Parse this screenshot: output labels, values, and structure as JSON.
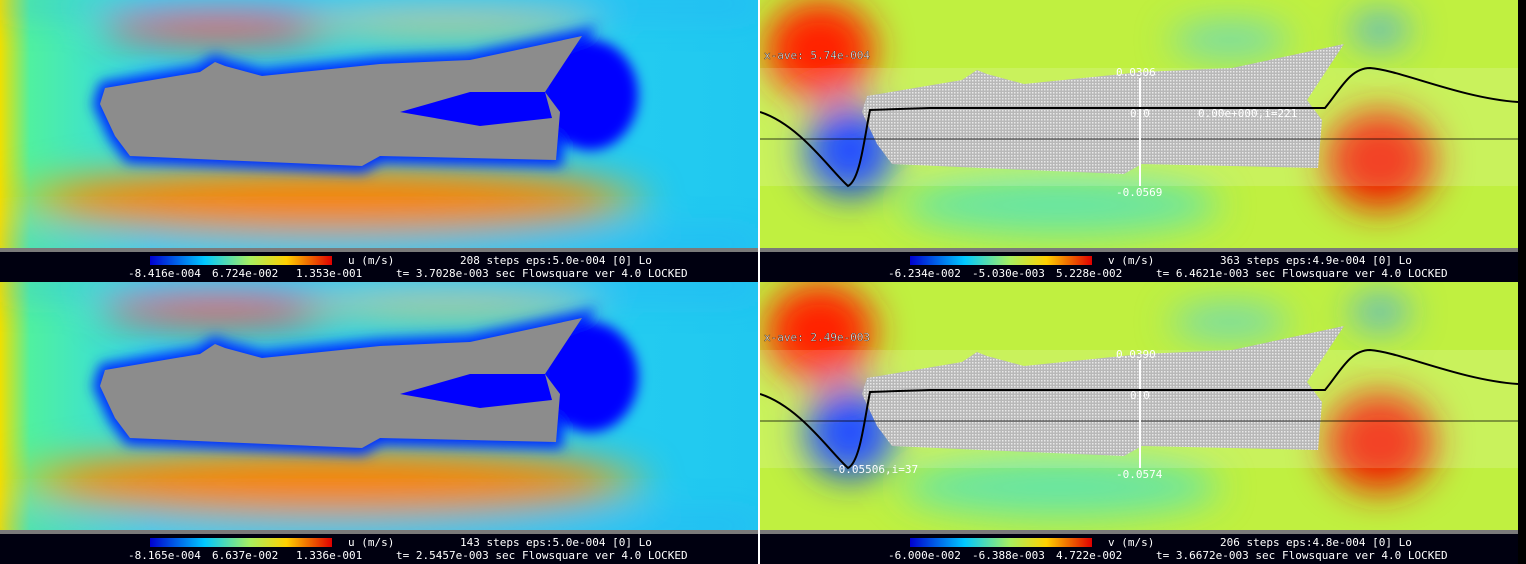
{
  "panels": [
    {
      "variable": "u (m/s)",
      "steps": "208 steps",
      "eps": "eps:5.0e-004 [0] Lo",
      "min": "-8.416e-004",
      "mid": "6.724e-002",
      "max": "1.353e-001",
      "time": "t= 3.7028e-003 sec",
      "version": "Flowsquare ver 4.0 LOCKED"
    },
    {
      "variable": "v (m/s)",
      "steps": "363 steps",
      "eps": "eps:4.9e-004 [0] Lo",
      "min": "-6.234e-002",
      "mid": "-5.030e-003",
      "max": "5.228e-002",
      "time": "t= 6.4621e-003 sec",
      "version": "Flowsquare ver 4.0 LOCKED",
      "x_ave": "x-ave: 5.74e-004",
      "plot_top": "0.0306",
      "plot_zero": "0.0",
      "plot_bottom": "-0.0569",
      "plot_note": "0.00e+000,i=221"
    },
    {
      "variable": "u (m/s)",
      "steps": "143 steps",
      "eps": "eps:5.0e-004 [0] Lo",
      "min": "-8.165e-004",
      "mid": "6.637e-002",
      "max": "1.336e-001",
      "time": "t= 2.5457e-003 sec",
      "version": "Flowsquare ver 4.0 LOCKED"
    },
    {
      "variable": "v (m/s)",
      "steps": "206 steps",
      "eps": "eps:4.8e-004 [0] Lo",
      "min": "-6.000e-002",
      "mid": "-6.388e-003",
      "max": "4.722e-002",
      "time": "t= 3.6672e-003 sec",
      "version": "Flowsquare ver 4.0 LOCKED",
      "x_ave": "x-ave: 2.49e-003",
      "plot_top": "0.0390",
      "plot_zero": "0.0",
      "plot_bottom": "-0.0574",
      "plot_note": "-0.05506,i=37"
    }
  ]
}
